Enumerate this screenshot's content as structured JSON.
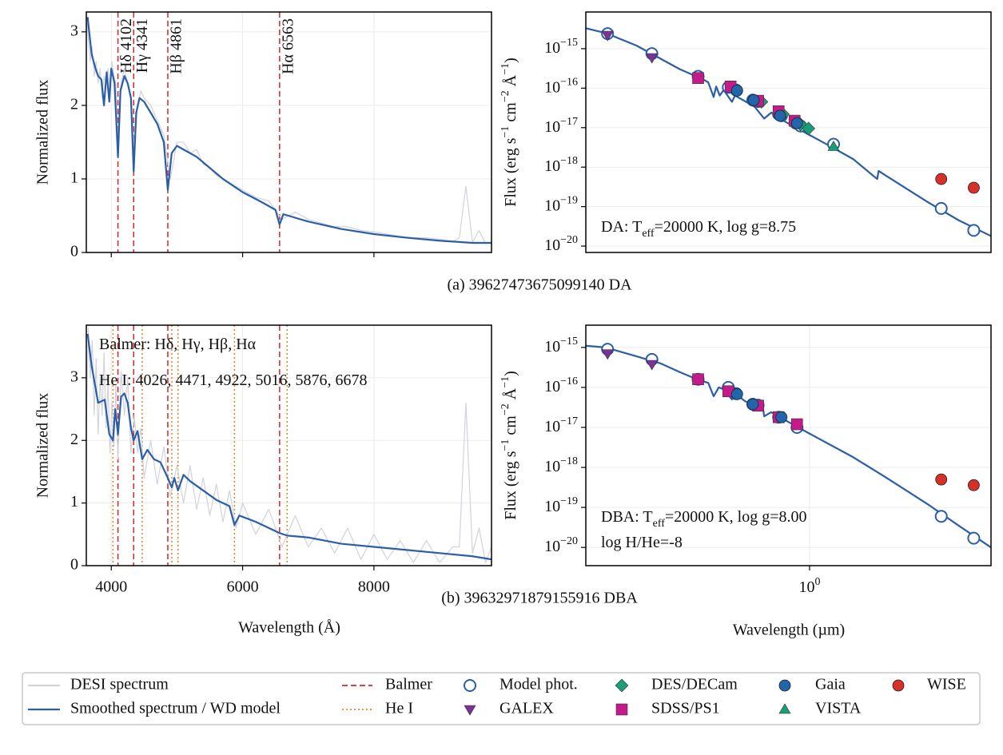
{
  "chart_data": [
    {
      "type": "line",
      "ylabel": "Normalized flux",
      "caption": "(a) 39627473675099140  DA",
      "xlim": [
        3620,
        9790
      ],
      "ylim": [
        0,
        3.27
      ],
      "yticks": [
        0,
        1,
        2,
        3
      ],
      "grid": true,
      "series": [
        {
          "name": "DESI spectrum",
          "color": "#d0d3dc",
          "x": [
            3620,
            3650,
            3680,
            3710,
            3740,
            3770,
            3800,
            3830,
            3860,
            3890,
            3920,
            3950,
            3980,
            4010,
            4040,
            4070,
            4100,
            4150,
            4200,
            4250,
            4300,
            4350,
            4400,
            4450,
            4500,
            4600,
            4700,
            4800,
            4900,
            5000,
            5100,
            5200,
            5300,
            5400,
            5500,
            5600,
            5700,
            5800,
            5900,
            6000,
            6200,
            6400,
            6600,
            6800,
            7000,
            7200,
            7400,
            7600,
            7800,
            8000,
            8200,
            8400,
            8600,
            8800,
            9000,
            9200,
            9300,
            9400,
            9500,
            9600,
            9700,
            9790
          ],
          "values": [
            3.25,
            2.9,
            2.6,
            2.8,
            2.4,
            2.6,
            2.3,
            2.5,
            2.1,
            2.4,
            2.3,
            2.5,
            2.2,
            2.6,
            2.4,
            2.3,
            1.5,
            2.3,
            2.5,
            2.3,
            2.1,
            1.4,
            2.0,
            2.2,
            2.1,
            2.0,
            1.8,
            1.6,
            1.0,
            1.5,
            1.5,
            1.35,
            1.4,
            1.2,
            1.15,
            1.05,
            1.0,
            0.95,
            0.9,
            0.85,
            0.75,
            0.7,
            0.45,
            0.55,
            0.45,
            0.4,
            0.35,
            0.35,
            0.3,
            0.28,
            0.25,
            0.22,
            0.2,
            0.2,
            0.18,
            0.15,
            0.2,
            0.9,
            0.14,
            0.3,
            0.12,
            0.13
          ]
        },
        {
          "name": "Smoothed spectrum / WD model",
          "color": "#2a5ea8",
          "x": [
            3640,
            3700,
            3760,
            3800,
            3850,
            3889,
            3930,
            3970,
            4000,
            4050,
            4102,
            4140,
            4200,
            4250,
            4300,
            4341,
            4380,
            4430,
            4500,
            4600,
            4700,
            4800,
            4861,
            4920,
            5000,
            5100,
            5300,
            5500,
            5700,
            6000,
            6300,
            6500,
            6563,
            6620,
            7000,
            7500,
            8000,
            8500,
            9000,
            9500,
            9790
          ],
          "values": [
            3.2,
            2.7,
            2.5,
            2.4,
            2.35,
            2.0,
            2.45,
            2.05,
            2.5,
            2.3,
            1.3,
            2.2,
            2.4,
            2.3,
            2.1,
            1.1,
            1.9,
            2.1,
            2.05,
            1.9,
            1.75,
            1.5,
            0.85,
            1.35,
            1.45,
            1.4,
            1.3,
            1.15,
            1.0,
            0.82,
            0.68,
            0.58,
            0.38,
            0.52,
            0.42,
            0.32,
            0.25,
            0.2,
            0.16,
            0.13,
            0.13
          ]
        }
      ],
      "vlines": [
        {
          "name": "Balmer",
          "color": "#d62728",
          "dash": "dashed",
          "x": [
            4102,
            4341,
            4861,
            6563
          ],
          "labels": [
            "Hδ 4102",
            "Hγ 4341",
            "Hβ 4861",
            "Hα 6563"
          ]
        }
      ]
    },
    {
      "type": "line",
      "xscale": "log",
      "yscale": "log",
      "ylabel": [
        "Flux (erg s",
        "−1",
        " cm",
        "−2",
        " Å",
        "−1",
        ")"
      ],
      "xlim": [
        0.125,
        5.4
      ],
      "ylim": [
        6.9e-21,
        8.5e-15
      ],
      "grid": true,
      "yticks": [
        {
          "value": 1e-15,
          "label": "10",
          "exponent": "−15"
        },
        {
          "value": 1e-16,
          "label": "10",
          "exponent": "−16"
        },
        {
          "value": 1e-17,
          "label": "10",
          "exponent": "−17"
        },
        {
          "value": 1e-18,
          "label": "10",
          "exponent": "−18"
        },
        {
          "value": 1e-19,
          "label": "10",
          "exponent": "−19"
        },
        {
          "value": 1e-20,
          "label": "10",
          "exponent": "−20"
        }
      ],
      "annotations": [
        {
          "parts": [
            "DA: T",
            "eff",
            "=20000 K, log g=8.75"
          ]
        }
      ],
      "series": [
        {
          "color": "#2a5ea8",
          "x": [
            0.125,
            0.15,
            0.2,
            0.3,
            0.37,
            0.39,
            0.41,
            0.42,
            0.434,
            0.45,
            0.486,
            0.5,
            0.6,
            0.656,
            0.7,
            0.8,
            1.0,
            1.2,
            1.5,
            1.875,
            1.9,
            2.0,
            3.0,
            4.0,
            5.4
          ],
          "values": [
            3.3e-15,
            2.5e-15,
            1.2e-15,
            3e-16,
            1.7e-16,
            1.4e-16,
            6e-17,
            1.1e-16,
            6.5e-17,
            9e-17,
            4.5e-17,
            6.5e-17,
            3.4e-17,
            1.7e-17,
            2.4e-17,
            1.4e-17,
            6.5e-18,
            3.5e-18,
            1.6e-18,
            5e-19,
            8e-19,
            6.5e-19,
            1.3e-19,
            4.5e-20,
            1.8e-20
          ]
        },
        {
          "name": "Model phot.",
          "color": "#2a5ea8",
          "marker": "open-circle",
          "x": [
            0.153,
            0.231,
            0.355,
            0.47,
            0.505,
            0.59,
            0.62,
            0.75,
            0.77,
            0.88,
            0.92,
            1.25,
            3.4,
            4.6
          ],
          "values": [
            2.4e-15,
            7.5e-16,
            2e-16,
            1.05e-16,
            9e-17,
            5e-17,
            4.6e-17,
            2.2e-17,
            2e-17,
            1.3e-17,
            1.1e-17,
            3.8e-18,
            9e-20,
            2.5e-20
          ]
        },
        {
          "name": "GALEX",
          "color": "#7b3294",
          "marker": "triangle-down",
          "x": [
            0.153,
            0.231
          ],
          "values": [
            2.2e-15,
            6e-16
          ]
        },
        {
          "name": "DES/DECam",
          "color": "#1a9e77",
          "marker": "diamond",
          "x": [
            0.64,
            0.78,
            0.92,
            0.99
          ],
          "values": [
            4.5e-17,
            2.2e-17,
            1.2e-17,
            9.5e-18
          ]
        },
        {
          "name": "SDSS/PS1",
          "color": "#c51b8a",
          "marker": "square",
          "x": [
            0.355,
            0.48,
            0.62,
            0.75,
            0.87
          ],
          "values": [
            1.8e-16,
            1.1e-16,
            4.8e-17,
            2.6e-17,
            1.5e-17
          ]
        },
        {
          "name": "Gaia",
          "color": "#2166ac",
          "marker": "circle",
          "x": [
            0.51,
            0.595,
            0.76,
            0.89
          ],
          "values": [
            8.7e-17,
            5e-17,
            2e-17,
            1.3e-17
          ]
        },
        {
          "name": "VISTA",
          "color": "#1a9e77",
          "marker": "triangle-up",
          "x": [
            1.25
          ],
          "values": [
            3.3e-18
          ]
        },
        {
          "name": "WISE",
          "color": "#d73027",
          "marker": "circle",
          "x": [
            3.4,
            4.6
          ],
          "values": [
            5e-19,
            3e-19
          ]
        }
      ]
    },
    {
      "type": "line",
      "ylabel": "Normalized flux",
      "xlabel": "Wavelength (Å)",
      "caption": "(b) 39632971879155916  DBA",
      "xlim": [
        3620,
        9790
      ],
      "ylim": [
        0,
        3.84
      ],
      "xticks": [
        4000,
        6000,
        8000
      ],
      "yticks": [
        0,
        1,
        2,
        3
      ],
      "grid": true,
      "series": [
        {
          "name": "DESI spectrum",
          "color": "#d0d3dc",
          "x": [
            3620,
            3650,
            3680,
            3710,
            3740,
            3770,
            3800,
            3830,
            3860,
            3890,
            3920,
            3950,
            3980,
            4010,
            4040,
            4070,
            4100,
            4150,
            4200,
            4250,
            4300,
            4350,
            4400,
            4450,
            4500,
            4600,
            4700,
            4800,
            4900,
            5000,
            5100,
            5200,
            5300,
            5400,
            5500,
            5600,
            5700,
            5800,
            5900,
            6000,
            6200,
            6400,
            6600,
            6800,
            7000,
            7200,
            7400,
            7600,
            7800,
            8000,
            8200,
            8400,
            8600,
            8800,
            9000,
            9200,
            9300,
            9400,
            9500,
            9600,
            9700,
            9790
          ],
          "values": [
            2.2,
            3.8,
            3.0,
            3.6,
            2.4,
            3.3,
            2.1,
            3.0,
            2.4,
            3.4,
            2.2,
            2.9,
            1.8,
            2.6,
            1.9,
            2.9,
            1.7,
            3.1,
            2.4,
            3.0,
            1.8,
            2.4,
            1.8,
            2.2,
            1.4,
            2.0,
            1.3,
            1.9,
            1.1,
            1.6,
            1.0,
            1.6,
            0.9,
            1.4,
            0.8,
            1.3,
            0.7,
            1.2,
            0.6,
            1.0,
            0.5,
            0.9,
            0.3,
            0.8,
            0.3,
            0.6,
            0.2,
            0.6,
            0.1,
            0.5,
            0.1,
            0.4,
            0.05,
            0.4,
            0.05,
            0.3,
            0.3,
            2.6,
            0.2,
            0.6,
            0.05,
            0.3
          ]
        },
        {
          "name": "Smoothed spectrum / WD model",
          "color": "#2a5ea8",
          "x": [
            3640,
            3700,
            3800,
            3900,
            3970,
            4026,
            4060,
            4102,
            4150,
            4200,
            4250,
            4300,
            4341,
            4400,
            4471,
            4550,
            4650,
            4750,
            4861,
            4922,
            4960,
            5016,
            5100,
            5200,
            5400,
            5600,
            5800,
            5876,
            5950,
            6200,
            6563,
            6678,
            7000,
            7500,
            8000,
            8500,
            9000,
            9500,
            9790
          ],
          "values": [
            3.7,
            3.2,
            2.6,
            2.65,
            2.1,
            2.0,
            2.5,
            2.1,
            2.7,
            2.75,
            2.6,
            2.2,
            2.0,
            2.15,
            1.7,
            1.85,
            1.7,
            1.65,
            1.4,
            1.25,
            1.4,
            1.2,
            1.45,
            1.35,
            1.2,
            1.05,
            0.95,
            0.65,
            0.8,
            0.7,
            0.52,
            0.48,
            0.45,
            0.35,
            0.3,
            0.25,
            0.2,
            0.15,
            0.1
          ]
        }
      ],
      "vlines": [
        {
          "name": "Balmer",
          "color": "#d62728",
          "dash": "dashed",
          "x": [
            4102,
            4341,
            4861,
            6563
          ]
        },
        {
          "name": "He I",
          "color": "#e8811c",
          "dash": "dotted",
          "x": [
            4026,
            4471,
            4922,
            5016,
            5876,
            6678
          ]
        }
      ],
      "annotations": [
        {
          "parts": [
            "Balmer: Hδ, Hγ, Hβ, Hα"
          ],
          "color": "#d62728"
        },
        {
          "parts": [
            "He I: 4026, 4471, 4922, 5016, 5876, 6678"
          ],
          "color": "#e8811c"
        }
      ]
    },
    {
      "type": "line",
      "xscale": "log",
      "yscale": "log",
      "ylabel": [
        "Flux (erg s",
        "−1",
        " cm",
        "−2",
        " Å",
        "−1",
        ")"
      ],
      "xlabel": "Wavelength (µm)",
      "xlim": [
        0.125,
        5.4
      ],
      "ylim": [
        3.5e-21,
        3.6e-15
      ],
      "grid": true,
      "xticks": [
        {
          "value": 1,
          "label": "10",
          "exponent": "0"
        }
      ],
      "yticks": [
        {
          "value": 1e-15,
          "label": "10",
          "exponent": "−15"
        },
        {
          "value": 1e-16,
          "label": "10",
          "exponent": "−16"
        },
        {
          "value": 1e-17,
          "label": "10",
          "exponent": "−17"
        },
        {
          "value": 1e-18,
          "label": "10",
          "exponent": "−18"
        },
        {
          "value": 1e-19,
          "label": "10",
          "exponent": "−19"
        },
        {
          "value": 1e-20,
          "label": "10",
          "exponent": "−20"
        }
      ],
      "annotations": [
        {
          "parts": [
            "DBA: T",
            "eff",
            "=20000 K, log g=8.00"
          ]
        },
        {
          "parts": [
            "log H/He=-8"
          ]
        }
      ],
      "series": [
        {
          "color": "#2a5ea8",
          "x": [
            0.125,
            0.15,
            0.2,
            0.25,
            0.3,
            0.36,
            0.39,
            0.41,
            0.43,
            0.45,
            0.486,
            0.5,
            0.55,
            0.65,
            0.656,
            0.7,
            0.8,
            1.0,
            1.5,
            2.0,
            3.0,
            4.0,
            5.4
          ],
          "values": [
            1.1e-15,
            1e-15,
            6e-16,
            4e-16,
            2.4e-16,
            1.5e-16,
            1.3e-16,
            6e-17,
            1e-16,
            9e-17,
            5e-17,
            7e-17,
            4.5e-17,
            2.8e-17,
            1.9e-17,
            2.4e-17,
            1.5e-17,
            7e-18,
            1.8e-18,
            6e-19,
            1.2e-19,
            3.5e-20,
            1e-20
          ]
        },
        {
          "name": "Model phot.",
          "color": "#2a5ea8",
          "marker": "open-circle",
          "x": [
            0.153,
            0.231,
            0.355,
            0.47,
            0.505,
            0.59,
            0.62,
            0.75,
            0.89,
            3.4,
            4.6
          ],
          "values": [
            9e-16,
            5e-16,
            1.6e-16,
            1e-16,
            7e-17,
            3.8e-17,
            3.6e-17,
            1.8e-17,
            1e-17,
            6e-20,
            1.7e-20
          ]
        },
        {
          "name": "GALEX",
          "color": "#7b3294",
          "marker": "triangle-down",
          "x": [
            0.153,
            0.231
          ],
          "values": [
            7e-16,
            3.8e-16
          ]
        },
        {
          "name": "SDSS/PS1",
          "color": "#c51b8a",
          "marker": "square",
          "x": [
            0.355,
            0.47,
            0.62,
            0.75,
            0.89
          ],
          "values": [
            1.6e-16,
            8e-17,
            3.5e-17,
            1.8e-17,
            1.2e-17
          ]
        },
        {
          "name": "Gaia",
          "color": "#2166ac",
          "marker": "circle",
          "x": [
            0.51,
            0.59,
            0.77
          ],
          "values": [
            6.8e-17,
            3.8e-17,
            1.8e-17
          ]
        },
        {
          "name": "WISE",
          "color": "#d73027",
          "marker": "circle",
          "x": [
            3.4,
            4.6
          ],
          "values": [
            5e-19,
            3.6e-19
          ]
        }
      ]
    }
  ]
}
